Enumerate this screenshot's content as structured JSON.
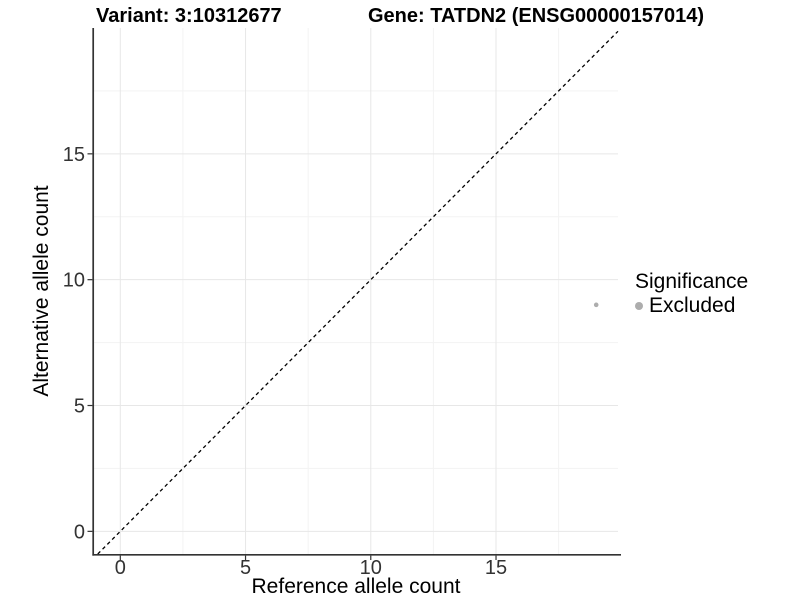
{
  "chart_data": {
    "type": "scatter",
    "variant_title": "Variant: 3:10312677",
    "gene_title": "Gene: TATDN2 (ENSG00000157014)",
    "xlabel": "Reference allele count",
    "ylabel": "Alternative allele count",
    "xlim": [
      -1.05,
      19.87
    ],
    "ylim": [
      -0.9,
      20.0
    ],
    "x_ticks": [
      0,
      5,
      10,
      15
    ],
    "y_ticks": [
      0,
      5,
      10,
      15
    ],
    "x_minor_ticks": [
      2.5,
      7.5,
      12.5,
      17.5
    ],
    "y_minor_ticks": [
      2.5,
      7.5,
      12.5,
      17.5
    ],
    "grid": {
      "show": true,
      "major_color": "#e7e7e7",
      "minor_color": "#f3f3f3"
    },
    "axis_color": "#333333",
    "tick_label_color": "#333333",
    "identity_line": {
      "slope": 1,
      "intercept": 0,
      "linetype": "dashed",
      "color": "#000000"
    },
    "series": [
      {
        "name": "Excluded",
        "color": "#adadad",
        "points": [
          {
            "x": 19,
            "y": 9
          }
        ]
      }
    ],
    "legend": {
      "position": "right",
      "title": "Significance",
      "items": [
        {
          "label": "Excluded",
          "color": "#adadad"
        }
      ]
    }
  }
}
